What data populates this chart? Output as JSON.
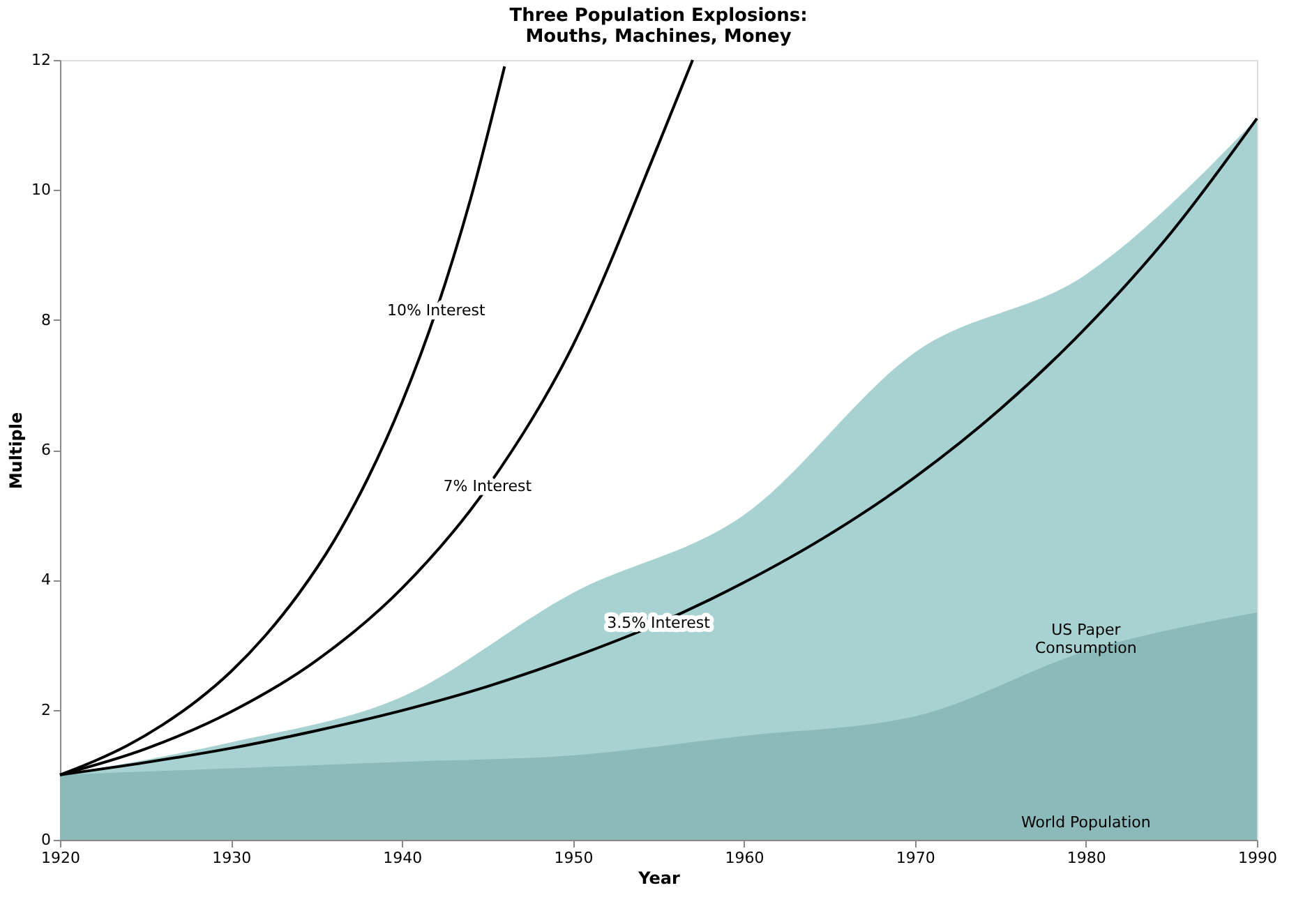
{
  "chart_data": {
    "type": "line",
    "title": "Three Population Explosions:\nMouths, Machines, Money",
    "xlabel": "Year",
    "ylabel": "Multiple",
    "xlim": [
      1920,
      1990
    ],
    "xticks": [
      1920,
      1930,
      1940,
      1950,
      1960,
      1970,
      1980,
      1990
    ],
    "ylim": [
      0,
      12
    ],
    "yticks": [
      0,
      2,
      4,
      6,
      8,
      10,
      12
    ],
    "grid": false,
    "series": [
      {
        "type": "area",
        "name": "US Paper\nConsumption",
        "color": "#a8d2d2",
        "x": [
          1920,
          1930,
          1940,
          1950,
          1960,
          1970,
          1980,
          1990
        ],
        "values": [
          1,
          1.5,
          2.2,
          3.8,
          5.0,
          7.5,
          8.7,
          11.1
        ]
      },
      {
        "type": "area",
        "name": "World Population",
        "color": "#8cb9b9",
        "x": [
          1920,
          1930,
          1940,
          1950,
          1960,
          1970,
          1980,
          1990
        ],
        "values": [
          1,
          1.1,
          1.2,
          1.3,
          1.6,
          1.9,
          2.9,
          3.5
        ]
      },
      {
        "color": "#000000",
        "x": [
          1920,
          1922,
          1924,
          1926,
          1928,
          1930,
          1932,
          1934,
          1936,
          1938,
          1940,
          1942,
          1944,
          1946
        ],
        "values": [
          1,
          1.21,
          1.46,
          1.77,
          2.14,
          2.59,
          3.14,
          3.8,
          4.59,
          5.56,
          6.73,
          8.14,
          9.85,
          11.9
        ]
      },
      {
        "color": "#000000",
        "x": [
          1920,
          1925,
          1930,
          1935,
          1940,
          1945,
          1950,
          1955,
          1957
        ],
        "values": [
          1,
          1.4,
          1.97,
          2.76,
          3.87,
          5.43,
          7.61,
          10.7,
          12.0
        ]
      },
      {
        "color": "#000000",
        "x": [
          1920,
          1925,
          1930,
          1935,
          1940,
          1945,
          1950,
          1955,
          1960,
          1965,
          1970,
          1975,
          1980,
          1985,
          1990
        ],
        "values": [
          1,
          1.19,
          1.41,
          1.68,
          1.99,
          2.36,
          2.81,
          3.33,
          3.96,
          4.7,
          5.58,
          6.63,
          7.88,
          9.35,
          11.1
        ]
      }
    ],
    "annotations": [
      {
        "text": "10% Interest",
        "x": 1942,
        "y": 8.14
      },
      {
        "text": "7% Interest",
        "x": 1945,
        "y": 5.43
      },
      {
        "text": "3.5% Interest",
        "x": 1955,
        "y": 3.33
      }
    ]
  }
}
